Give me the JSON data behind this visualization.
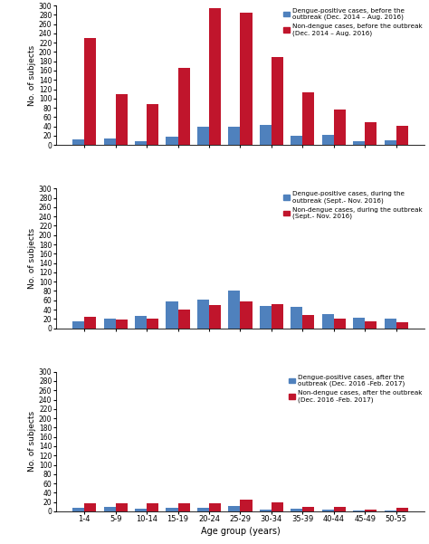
{
  "age_groups": [
    "1-4",
    "5-9",
    "10-14",
    "15-19",
    "20-24",
    "25-29",
    "30-34",
    "35-39",
    "40-44",
    "45-49",
    "50-55"
  ],
  "panel1": {
    "dengue": [
      12,
      14,
      9,
      18,
      40,
      40,
      43,
      20,
      21,
      9,
      10
    ],
    "non_dengue": [
      230,
      110,
      88,
      165,
      295,
      285,
      190,
      113,
      76,
      50,
      42
    ],
    "legend1": "Dengue-positive cases, before the\noutbreak (Dec. 2014 – Aug. 2016)",
    "legend2": "Non-dengue cases, before the outbreak\n(Dec. 2014 – Aug. 2016)"
  },
  "panel2": {
    "dengue": [
      15,
      20,
      27,
      58,
      62,
      80,
      48,
      45,
      30,
      22,
      20
    ],
    "non_dengue": [
      25,
      19,
      21,
      40,
      50,
      57,
      52,
      28,
      21,
      15,
      12
    ],
    "legend1": "Dengue-positive cases, during the\noutbreak (Sept.- Nov. 2016)",
    "legend2": "Non-dengue cases, during the outbreak\n(Sept.- Nov. 2016)"
  },
  "panel3": {
    "dengue": [
      8,
      9,
      6,
      7,
      7,
      12,
      4,
      5,
      3,
      2,
      1
    ],
    "non_dengue": [
      18,
      17,
      18,
      18,
      17,
      25,
      20,
      10,
      10,
      3,
      7
    ],
    "legend1": "Dengue-positive cases, after the\noutbreak (Dec. 2016 -Feb. 2017)",
    "legend2": "Non-dengue cases, after the outbreak\n(Dec. 2016 -Feb. 2017)"
  },
  "ylim": [
    0,
    300
  ],
  "yticks": [
    0,
    20,
    40,
    60,
    80,
    100,
    120,
    140,
    160,
    180,
    200,
    220,
    240,
    260,
    280,
    300
  ],
  "bar_color_blue": "#4F81BD",
  "bar_color_red": "#C0152C",
  "ylabel": "No. of subjects",
  "xlabel": "Age group (years)",
  "bar_width": 0.38,
  "figsize": [
    4.74,
    6.01
  ],
  "dpi": 100
}
